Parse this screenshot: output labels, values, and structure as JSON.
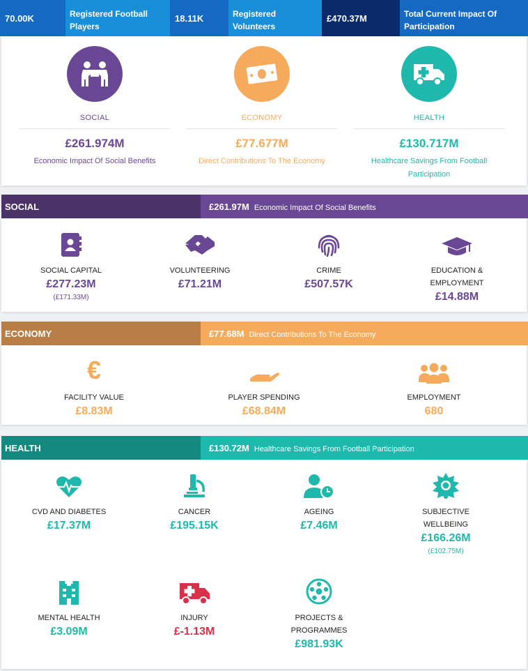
{
  "topbar": {
    "players_value": "70.00K",
    "players_label": "Registered Football Players",
    "volunteers_value": "18.11K",
    "volunteers_label": "Registered Volunteers",
    "impact_value": "£470.37M",
    "impact_label_1": "Total Current Impact Of",
    "impact_label_2": "Participation"
  },
  "summary": {
    "social": {
      "title": "SOCIAL",
      "amount": "£261.974M",
      "desc": "Economic Impact Of Social Benefits"
    },
    "economy": {
      "title": "ECONOMY",
      "amount": "£77.677M",
      "desc": "Direct Contributions To The Economy"
    },
    "health": {
      "title": "HEALTH",
      "amount": "£130.717M",
      "desc_1": "Healthcare Savings From Football",
      "desc_2": "Participation"
    }
  },
  "social": {
    "header": "SOCIAL",
    "amount": "£261.97M",
    "desc": "Economic Impact Of Social Benefits",
    "items": {
      "capital": {
        "name": "SOCIAL CAPITAL",
        "value": "£277.23M",
        "sub": "(£171.33M)"
      },
      "volunteering": {
        "name": "VOLUNTEERING",
        "value": "£71.21M"
      },
      "crime": {
        "name": "CRIME",
        "value": "£507.57K"
      },
      "education": {
        "name_1": "EDUCATION &",
        "name_2": "EMPLOYMENT",
        "value": "£14.88M"
      }
    }
  },
  "economy": {
    "header": "ECONOMY",
    "amount": "£77.68M",
    "desc": "Direct Contributions To The Economy",
    "items": {
      "facility": {
        "name": "FACILITY VALUE",
        "value": "£8.83M",
        "icon": "€"
      },
      "spending": {
        "name": "PLAYER SPENDING",
        "value": "£68.84M"
      },
      "employment": {
        "name": "EMPLOYMENT",
        "value": "680"
      }
    }
  },
  "health": {
    "header": "HEALTH",
    "amount": "£130.72M",
    "desc": "Healthcare Savings From Football Participation",
    "items": {
      "cvd": {
        "name": "CVD AND DIABETES",
        "value": "£17.37M"
      },
      "cancer": {
        "name": "CANCER",
        "value": "£195.15K"
      },
      "ageing": {
        "name": "AGEING",
        "value": "£7.46M"
      },
      "wellbeing": {
        "name_1": "SUBJECTIVE",
        "name_2": "WELLBEING",
        "value": "£166.26M",
        "sub": "(£102.75M)"
      },
      "mental": {
        "name": "MENTAL HEALTH",
        "value": "£3.09M"
      },
      "injury": {
        "name": "INJURY",
        "value": "£-1.13M"
      },
      "projects": {
        "name_1": "PROJECTS &",
        "name_2": "PROGRAMMES",
        "value": "£981.93K"
      }
    }
  },
  "colors": {
    "purple": "#6a4795",
    "orange": "#f6ab5c",
    "teal": "#1fb8ac",
    "red": "#d8314a"
  }
}
